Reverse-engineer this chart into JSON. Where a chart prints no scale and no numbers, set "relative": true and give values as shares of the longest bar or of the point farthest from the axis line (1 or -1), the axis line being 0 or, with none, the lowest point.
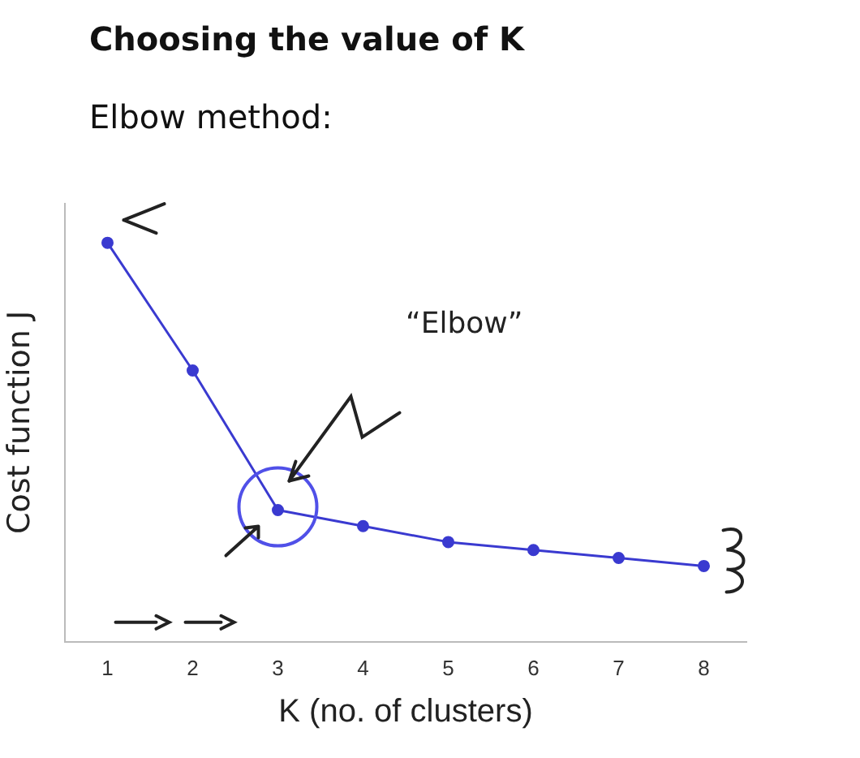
{
  "chart_data": {
    "type": "line",
    "title": "Choosing the value of K",
    "subtitle": "Elbow method:",
    "xlabel": "K (no. of clusters)",
    "ylabel": "Cost function J",
    "categories": [
      "1",
      "2",
      "3",
      "4",
      "5",
      "6",
      "7",
      "8"
    ],
    "series": [
      {
        "color": "#3a3ad0",
        "values": [
          1,
          0.68,
          0.33,
          0.29,
          0.25,
          0.23,
          0.21,
          0.19
        ]
      }
    ],
    "relative": true,
    "marker": "circle",
    "line_style": "solid",
    "legend": false,
    "grid": false,
    "annotations": [
      "“Elbow”"
    ]
  }
}
